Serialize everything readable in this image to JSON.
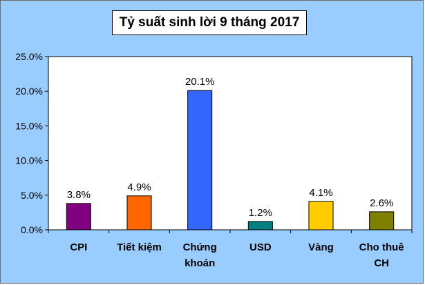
{
  "chart_data": {
    "type": "bar",
    "title": "Tỷ suất sinh lời 9 tháng 2017",
    "xlabel": "",
    "ylabel": "",
    "ylim": [
      0,
      25
    ],
    "y_ticks": [
      "0.0%",
      "5.0%",
      "10.0%",
      "15.0%",
      "20.0%",
      "25.0%"
    ],
    "y_tick_values": [
      0,
      5,
      10,
      15,
      20,
      25
    ],
    "grid": false,
    "legend": "none",
    "categories": [
      [
        "CPI"
      ],
      [
        "Tiết kiệm"
      ],
      [
        "Chứng",
        "khoán"
      ],
      [
        "USD"
      ],
      [
        "Vàng"
      ],
      [
        "Cho thuê",
        "CH"
      ]
    ],
    "values": [
      3.8,
      4.9,
      20.1,
      1.2,
      4.1,
      2.6
    ],
    "data_labels": [
      "3.8%",
      "4.9%",
      "20.1%",
      "1.2%",
      "4.1%",
      "2.6%"
    ],
    "colors": [
      "#800080",
      "#ff6600",
      "#3366ff",
      "#008080",
      "#ffcc00",
      "#808000"
    ],
    "background_color": "#99ccff",
    "plot_background": "#ffffff"
  }
}
